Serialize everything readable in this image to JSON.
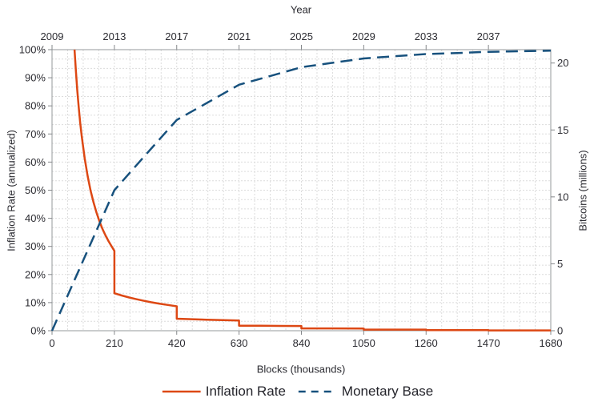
{
  "legend": {
    "items": [
      {
        "label": "Inflation Rate",
        "style": "solid",
        "color": "#dd4814"
      },
      {
        "label": "Monetary Base",
        "style": "dashed",
        "color": "#17517d"
      }
    ]
  },
  "colors": {
    "inflation_line": "#dd4814",
    "monetary_base_line": "#17517d",
    "gridline": "#dcdcdc",
    "spine": "#94989b",
    "text": "#2b2b31"
  },
  "chart_data": {
    "type": "line",
    "title": "",
    "grid": {
      "enabled": true,
      "x_step_blocks": 52.5,
      "y_step_pct": 3.3333,
      "style": "dashed"
    },
    "x_axis": {
      "title": "Blocks (thousands)",
      "range": [
        0,
        1680
      ],
      "ticks": [
        0,
        210,
        420,
        630,
        840,
        1050,
        1260,
        1470,
        1680
      ]
    },
    "top_axis": {
      "title": "Year",
      "tick_positions_blocks": [
        0,
        210,
        420,
        630,
        840,
        1050,
        1260,
        1470
      ],
      "tick_labels": [
        "2009",
        "2013",
        "2017",
        "2021",
        "2025",
        "2029",
        "2033",
        "2037"
      ]
    },
    "y_left": {
      "title": "Inflation Rate (annualized)",
      "range": [
        0,
        100
      ],
      "tick_values": [
        0,
        10,
        20,
        30,
        40,
        50,
        60,
        70,
        80,
        90,
        100
      ],
      "tick_labels": [
        "0%",
        "10%",
        "20%",
        "30%",
        "40%",
        "50%",
        "60%",
        "70%",
        "80%",
        "90%",
        "100%"
      ]
    },
    "y_right": {
      "title": "Bitcoins (millions)",
      "range": [
        0,
        21
      ],
      "tick_values": [
        0,
        5,
        10,
        15,
        20
      ],
      "tick_labels": [
        "0",
        "5",
        "10",
        "15",
        "20"
      ]
    },
    "series": [
      {
        "name": "Inflation Rate",
        "axis": "left",
        "color": "#dd4814",
        "style": "solid",
        "points": [
          [
            75.8,
            100
          ],
          [
            80,
            92.9
          ],
          [
            85,
            85.6
          ],
          [
            90,
            79.3
          ],
          [
            95,
            73.9
          ],
          [
            100,
            69.2
          ],
          [
            110,
            61.3
          ],
          [
            120,
            55.0
          ],
          [
            130,
            49.8
          ],
          [
            140,
            45.6
          ],
          [
            150,
            42.0
          ],
          [
            160,
            38.9
          ],
          [
            170,
            36.2
          ],
          [
            180,
            33.9
          ],
          [
            190,
            31.9
          ],
          [
            200,
            30.1
          ],
          [
            210,
            28.4
          ],
          [
            210,
            13.33
          ],
          [
            235,
            12.54
          ],
          [
            260,
            11.83
          ],
          [
            285,
            11.2
          ],
          [
            310,
            10.64
          ],
          [
            335,
            10.12
          ],
          [
            360,
            9.66
          ],
          [
            390,
            9.16
          ],
          [
            420,
            8.7
          ],
          [
            420,
            4.26
          ],
          [
            470,
            4.09
          ],
          [
            520,
            3.94
          ],
          [
            575,
            3.78
          ],
          [
            630,
            3.64
          ],
          [
            630,
            1.8
          ],
          [
            700,
            1.76
          ],
          [
            770,
            1.72
          ],
          [
            840,
            1.68
          ],
          [
            840,
            0.84
          ],
          [
            945,
            0.82
          ],
          [
            1050,
            0.81
          ],
          [
            1050,
            0.4
          ],
          [
            1150,
            0.4
          ],
          [
            1260,
            0.4
          ],
          [
            1260,
            0.2
          ],
          [
            1360,
            0.2
          ],
          [
            1470,
            0.2
          ],
          [
            1470,
            0.1
          ],
          [
            1580,
            0.1
          ],
          [
            1680,
            0.1
          ]
        ]
      },
      {
        "name": "Monetary Base",
        "axis": "right",
        "color": "#17517d",
        "style": "dashed",
        "points": [
          [
            0,
            0
          ],
          [
            105,
            5.25
          ],
          [
            210,
            10.5
          ],
          [
            315,
            13.13
          ],
          [
            420,
            15.75
          ],
          [
            525,
            17.06
          ],
          [
            630,
            18.38
          ],
          [
            735,
            19.03
          ],
          [
            840,
            19.69
          ],
          [
            945,
            20.02
          ],
          [
            1050,
            20.34
          ],
          [
            1155,
            20.51
          ],
          [
            1260,
            20.67
          ],
          [
            1365,
            20.75
          ],
          [
            1470,
            20.84
          ],
          [
            1575,
            20.88
          ],
          [
            1680,
            20.92
          ]
        ]
      }
    ]
  }
}
